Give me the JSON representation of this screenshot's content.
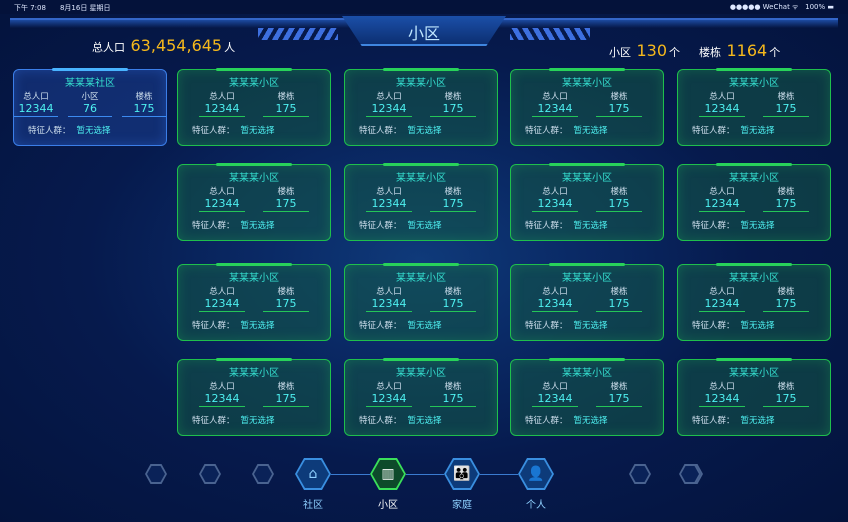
{
  "status_bar": {
    "time": "下午 7:08",
    "date": "8月16日 星期日",
    "carrier": "●●●●● WeChat ᯤ",
    "battery": "100% ▬"
  },
  "header": {
    "title": "小区"
  },
  "summary": {
    "population_label": "总人口",
    "population": "63,454,645",
    "population_unit": "人",
    "estates_label": "小区",
    "estates": "130",
    "estates_unit": "个",
    "buildings_label": "楼栋",
    "buildings": "1164",
    "buildings_unit": "个"
  },
  "community_card": {
    "name": "某某某社区",
    "stats": [
      {
        "label": "总人口",
        "value": "12344"
      },
      {
        "label": "小区",
        "value": "76"
      },
      {
        "label": "楼栋",
        "value": "175"
      }
    ],
    "feature_label": "特征人群：",
    "feature_value": "暂无选择"
  },
  "estate_cards": [
    {
      "name": "某某某小区",
      "population_label": "总人口",
      "population": "12344",
      "buildings_label": "楼栋",
      "buildings": "175",
      "feature_label": "特征人群：",
      "feature_value": "暂无选择"
    }
  ],
  "estate_card_count": 16,
  "nav": {
    "items": [
      {
        "label": "社区",
        "icon": "community-houses-icon",
        "glyph": "⌂"
      },
      {
        "label": "小区",
        "icon": "building-icon",
        "glyph": "▥",
        "active": true
      },
      {
        "label": "家庭",
        "icon": "family-icon",
        "glyph": "👪"
      },
      {
        "label": "个人",
        "icon": "person-icon",
        "glyph": "👤"
      }
    ]
  },
  "colors": {
    "accent_gold": "#f5b81c",
    "card_green": "#1fbf4c",
    "card_blue": "#3b7ee8",
    "value_cyan": "#4ef0f0"
  }
}
